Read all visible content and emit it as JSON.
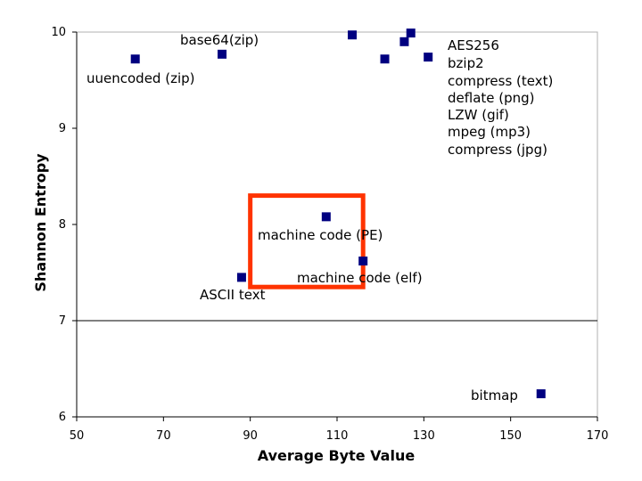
{
  "chart_data": {
    "type": "scatter",
    "title": "",
    "xlabel": "Average Byte Value",
    "ylabel": "Shannon Entropy",
    "xlim": [
      50,
      170
    ],
    "ylim": [
      6,
      10
    ],
    "x_ticks": [
      "50",
      "70",
      "90",
      "110",
      "130",
      "150",
      "170"
    ],
    "y_ticks": [
      "6",
      "7",
      "8",
      "9",
      "10"
    ],
    "grid": "single horizontal line at y=7",
    "marker_color": "#000080",
    "highlight_color": "#ff3300",
    "points": [
      {
        "x": 63.5,
        "y": 9.72
      },
      {
        "x": 83.5,
        "y": 9.77
      },
      {
        "x": 113.5,
        "y": 9.97
      },
      {
        "x": 121,
        "y": 9.72
      },
      {
        "x": 125.5,
        "y": 9.9
      },
      {
        "x": 127,
        "y": 9.99
      },
      {
        "x": 131,
        "y": 9.74
      },
      {
        "x": 107.5,
        "y": 8.08
      },
      {
        "x": 116,
        "y": 7.62
      },
      {
        "x": 88,
        "y": 7.45
      },
      {
        "x": 157,
        "y": 6.24
      }
    ],
    "annotations": [
      {
        "text": "base64(zip)"
      },
      {
        "text": "uuencoded (zip)"
      },
      {
        "text": "AES256"
      },
      {
        "text": "bzip2"
      },
      {
        "text": "compress (text)"
      },
      {
        "text": "deflate (png)"
      },
      {
        "text": "LZW (gif)"
      },
      {
        "text": "mpeg (mp3)"
      },
      {
        "text": "compress (jpg)"
      },
      {
        "text": "machine code (PE)"
      },
      {
        "text": "machine code (elf)"
      },
      {
        "text": "ASCII text"
      },
      {
        "text": "bitmap"
      }
    ],
    "highlight_box": {
      "x_range": [
        90,
        116
      ],
      "y_range": [
        7.35,
        8.3
      ]
    }
  }
}
